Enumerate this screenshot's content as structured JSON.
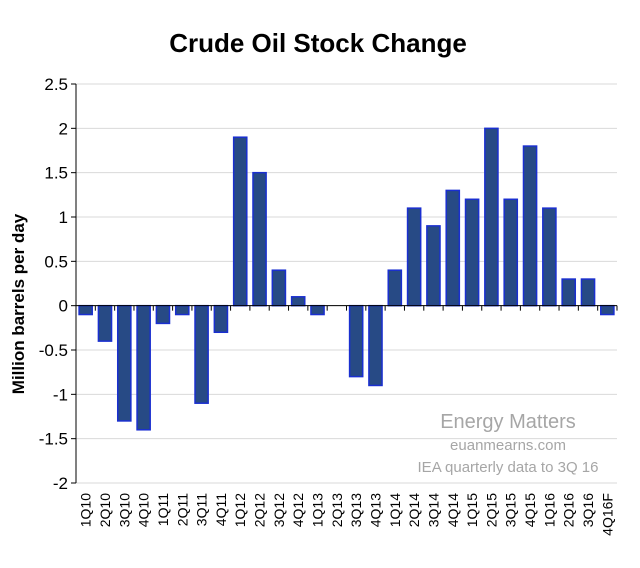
{
  "chart_data": {
    "type": "bar",
    "title": "Crude Oil Stock Change",
    "ylabel": "Million barrels per day",
    "xlabel": "",
    "ylim": [
      -2,
      2.5
    ],
    "yticks": [
      2.5,
      2,
      1.5,
      1,
      0.5,
      0,
      -0.5,
      -1,
      -1.5,
      -2
    ],
    "ytick_labels": [
      "2.5",
      "2",
      "1.5",
      "1",
      "0.5",
      "0",
      "-0.5",
      "-1",
      "-1.5",
      "-2"
    ],
    "grid": true,
    "categories": [
      "1Q10",
      "2Q10",
      "3Q10",
      "4Q10",
      "1Q11",
      "2Q11",
      "3Q11",
      "4Q11",
      "1Q12",
      "2Q12",
      "3Q12",
      "4Q12",
      "1Q13",
      "2Q13",
      "3Q13",
      "4Q13",
      "1Q14",
      "2Q14",
      "3Q14",
      "4Q14",
      "1Q15",
      "2Q15",
      "3Q15",
      "4Q15",
      "1Q16",
      "2Q16",
      "3Q16",
      "4Q16F"
    ],
    "values": [
      -0.1,
      -0.4,
      -1.3,
      -1.4,
      -0.2,
      -0.1,
      -1.1,
      -0.3,
      1.9,
      1.5,
      0.4,
      0.1,
      -0.1,
      0,
      -0.8,
      -0.9,
      0.4,
      1.1,
      0.9,
      1.3,
      1.2,
      2.0,
      1.2,
      1.8,
      1.1,
      0.3,
      0.3,
      -0.1
    ],
    "annotations": [
      "Energy Matters",
      "euanmearns.com",
      "IEA quarterly data to 3Q 16"
    ],
    "colors": {
      "bar_fill": "#274a85",
      "bar_stroke": "#1a2fd0",
      "grid": "#d9d9d9",
      "axis": "#000000",
      "annotation": "#a6a6a6"
    }
  }
}
